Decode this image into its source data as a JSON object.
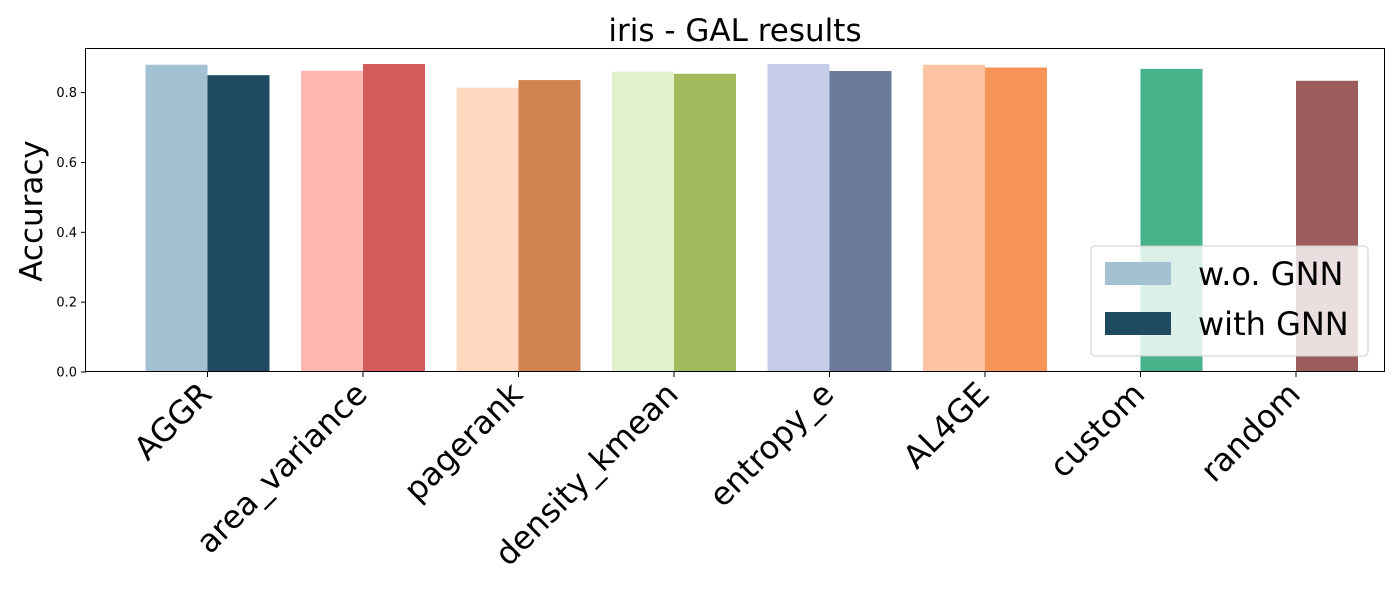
{
  "chart_data": {
    "type": "bar",
    "title": "iris - GAL results",
    "xlabel": "",
    "ylabel": "Accuracy",
    "ylim": [
      0,
      0.925
    ],
    "yticks": [
      "0.0",
      "0.2",
      "0.4",
      "0.6",
      "0.8"
    ],
    "grid": false,
    "legend_position": "lower right",
    "categories": [
      "AGGR",
      "area_variance",
      "pagerank",
      "density_kmean",
      "entropy_e",
      "AL4GE",
      "custom",
      "random"
    ],
    "series": [
      {
        "name": "w.o. GNN",
        "legend_color": "#a3c1d3",
        "values": [
          0.88,
          0.863,
          0.814,
          0.86,
          0.882,
          0.88,
          null,
          null
        ],
        "colors": [
          "#a3c1d3",
          "#feb7b1",
          "#fed9c0",
          "#e2f0cd",
          "#c6cde8",
          "#fec3a3",
          null,
          null
        ]
      },
      {
        "name": "with GNN",
        "legend_color": "#1f4a5f",
        "values": [
          0.85,
          0.882,
          0.836,
          0.854,
          0.862,
          0.872,
          0.868,
          0.834
        ],
        "colors": [
          "#1f4a5f",
          "#d35b5c",
          "#d1844f",
          "#a2b95c",
          "#6b799b",
          "#f79457",
          "#46b38b",
          "#9d5c5c"
        ]
      }
    ]
  }
}
